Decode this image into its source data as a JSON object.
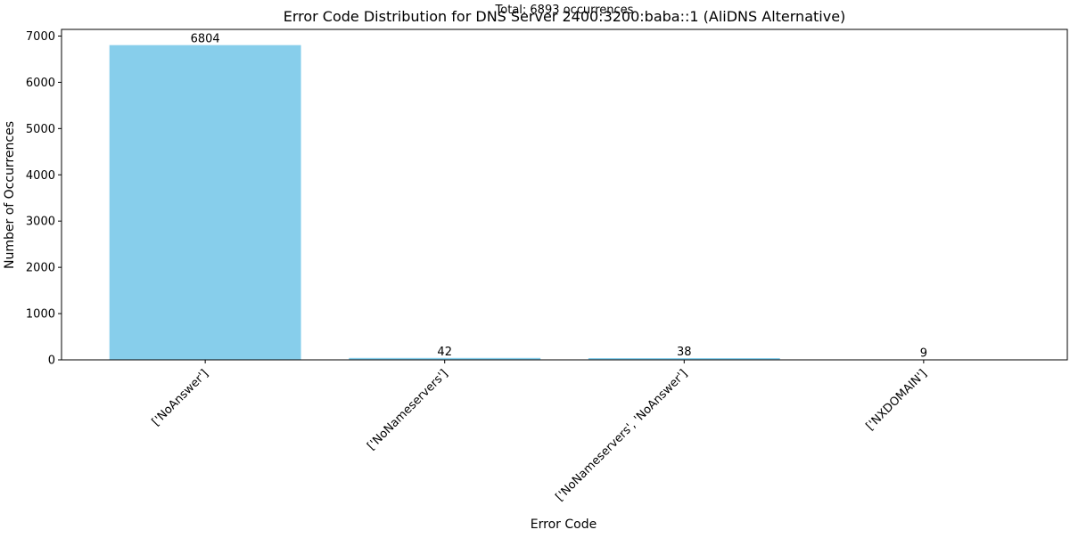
{
  "chart_data": {
    "type": "bar",
    "title": "Error Code Distribution for DNS Server 2400:3200:baba::1 (AliDNS Alternative)",
    "subtitle": "Total: 6893 occurrences",
    "xlabel": "Error Code",
    "ylabel": "Number of Occurrences",
    "categories": [
      "['NoAnswer']",
      "['NoNameservers']",
      "['NoNameservers', 'NoAnswer']",
      "['NXDOMAIN']"
    ],
    "values": [
      6804,
      42,
      38,
      9
    ],
    "data_labels": [
      "6804",
      "42",
      "38",
      "9"
    ],
    "ylim": [
      0,
      7144
    ],
    "yticks": [
      0,
      1000,
      2000,
      3000,
      4000,
      5000,
      6000,
      7000
    ],
    "ytick_labels": [
      "0",
      "1000",
      "2000",
      "3000",
      "4000",
      "5000",
      "6000",
      "7000"
    ],
    "grid": false,
    "legend": "none",
    "bar_color": "#87ceeb"
  }
}
